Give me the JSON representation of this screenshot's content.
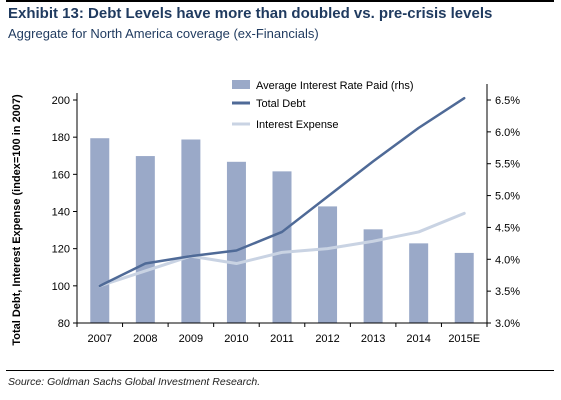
{
  "header": {
    "title": "Exhibit 13: Debt Levels have more than doubled vs. pre-crisis levels",
    "subtitle": "Aggregate for North America coverage (ex-Financials)"
  },
  "footer": {
    "source": "Source: Goldman Sachs Global Investment Research."
  },
  "colors": {
    "bars": "#9aa9c8",
    "total_debt": "#4f6a97",
    "interest_expense": "#c9d3e3",
    "title": "#1f3a5f"
  },
  "chart_data": {
    "type": "bar+line",
    "categories": [
      "2007",
      "2008",
      "2009",
      "2010",
      "2011",
      "2012",
      "2013",
      "2014",
      "2015E"
    ],
    "ylabel_left": "Total Debt, Interest Expense (index=100 in 2007)",
    "ylim_left": [
      80,
      200
    ],
    "yticks_left": [
      "80",
      "100",
      "120",
      "140",
      "160",
      "180",
      "200"
    ],
    "ylim_right": [
      0.03,
      0.065
    ],
    "yticks_right": [
      "3.0%",
      "3.5%",
      "4.0%",
      "4.5%",
      "5.0%",
      "5.5%",
      "6.0%",
      "6.5%"
    ],
    "grid": false,
    "legend_position": "top-center",
    "series": [
      {
        "name": "Average Interest Rate Paid (rhs)",
        "kind": "bar",
        "axis": "right",
        "values": [
          0.059,
          0.0562,
          0.0588,
          0.0553,
          0.0538,
          0.0483,
          0.0447,
          0.0425,
          0.041
        ]
      },
      {
        "name": "Total Debt",
        "kind": "line",
        "axis": "left",
        "values": [
          100,
          112,
          116,
          119,
          129,
          148,
          167,
          185,
          201
        ]
      },
      {
        "name": "Interest Expense",
        "kind": "line",
        "axis": "left",
        "values": [
          100,
          108,
          116,
          112,
          118,
          120,
          124,
          129,
          139
        ]
      }
    ]
  }
}
